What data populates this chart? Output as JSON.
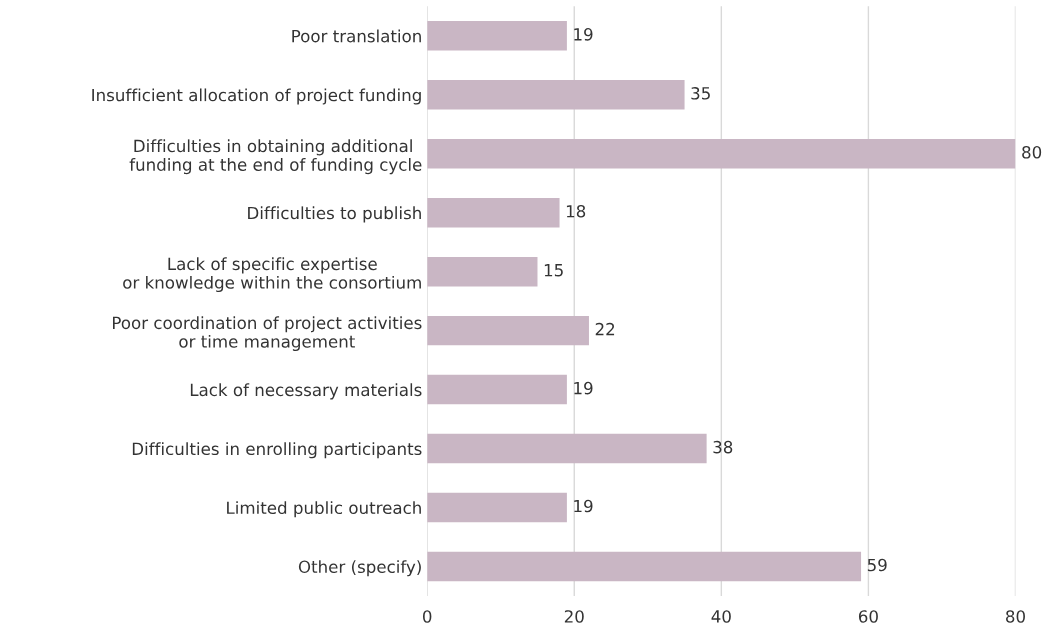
{
  "chart_data": {
    "type": "bar",
    "orientation": "horizontal",
    "categories": [
      "Poor translation",
      "Insufficient allocation of project funding",
      "Difficulties in obtaining additional \nfunding at the end of funding cycle",
      "Difficulties to publish",
      "Lack of specific expertise\nor knowledge within the consortium",
      "Poor coordination of project activities\nor time management",
      "Lack of necessary materials",
      "Difficulties in enrolling participants",
      "Limited public outreach",
      "Other (specify)"
    ],
    "values": [
      19,
      35,
      80,
      18,
      15,
      22,
      19,
      38,
      19,
      59
    ],
    "color": "#c9b6c4",
    "xlim": [
      0,
      80
    ],
    "xticks": [
      0,
      20,
      40,
      60,
      80
    ],
    "grid": "x",
    "data_labels": true,
    "legend": false
  }
}
